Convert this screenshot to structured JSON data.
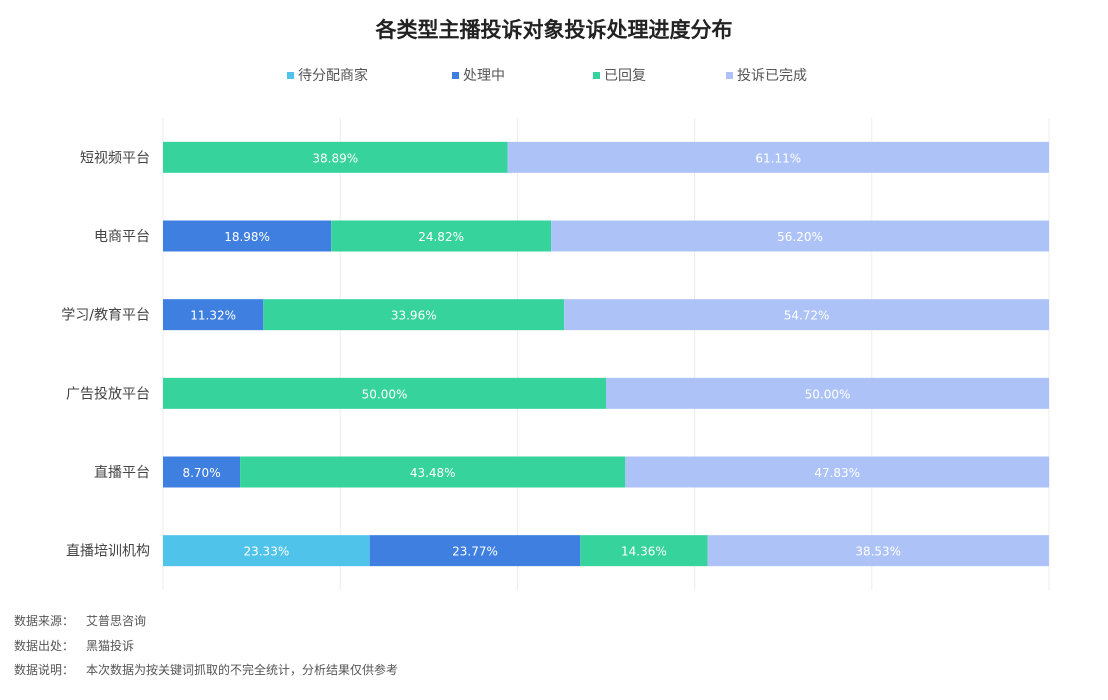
{
  "chart_data": {
    "type": "bar",
    "orientation": "horizontal",
    "stacked": true,
    "title": "各类型主播投诉对象投诉处理进度分布",
    "categories": [
      "短视频平台",
      "电商平台",
      "学习/教育平台",
      "广告投放平台",
      "直播平台",
      "直播培训机构"
    ],
    "series": [
      {
        "name": "待分配商家",
        "color": "#4fc3ea",
        "values": [
          0,
          0,
          0,
          0,
          0,
          23.33
        ]
      },
      {
        "name": "处理中",
        "color": "#3f7fe0",
        "values": [
          0,
          18.98,
          11.32,
          0,
          8.7,
          23.77
        ]
      },
      {
        "name": "已回复",
        "color": "#36d39c",
        "values": [
          38.89,
          24.82,
          33.96,
          50.0,
          43.48,
          14.36
        ]
      },
      {
        "name": "投诉已完成",
        "color": "#adc3f7",
        "values": [
          61.11,
          56.2,
          54.72,
          50.0,
          47.83,
          38.53
        ]
      }
    ],
    "data_labels": [
      [
        "",
        "",
        "38.89%",
        "61.11%"
      ],
      [
        "",
        "18.98%",
        "24.82%",
        "56.20%"
      ],
      [
        "",
        "11.32%",
        "33.96%",
        "54.72%"
      ],
      [
        "",
        "",
        "50.00%",
        "50.00%"
      ],
      [
        "",
        "8.70%",
        "43.48%",
        "47.83%"
      ],
      [
        "23.33%",
        "23.77%",
        "14.36%",
        "38.53%"
      ]
    ],
    "xlim": [
      0,
      100
    ],
    "grid": true,
    "legend": "top"
  },
  "footer": {
    "source_label": "数据来源：",
    "source_value": "艾普思咨询",
    "origin_label": "数据出处：",
    "origin_value": "黑猫投诉",
    "note_label": "数据说明：",
    "note_value": "本次数据为按关键词抓取的不完全统计，分析结果仅供参考"
  }
}
